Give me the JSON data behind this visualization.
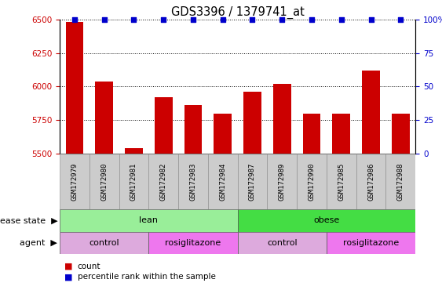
{
  "title": "GDS3396 / 1379741_at",
  "samples": [
    "GSM172979",
    "GSM172980",
    "GSM172981",
    "GSM172982",
    "GSM172983",
    "GSM172984",
    "GSM172987",
    "GSM172989",
    "GSM172990",
    "GSM172985",
    "GSM172986",
    "GSM172988"
  ],
  "counts": [
    6480,
    6040,
    5540,
    5920,
    5860,
    5800,
    5960,
    6020,
    5800,
    5800,
    6120,
    5800
  ],
  "percentiles": [
    100,
    100,
    100,
    100,
    100,
    100,
    100,
    100,
    100,
    100,
    100,
    100
  ],
  "ylim_left": [
    5500,
    6500
  ],
  "ylim_right": [
    0,
    100
  ],
  "yticks_left": [
    5500,
    5750,
    6000,
    6250,
    6500
  ],
  "yticks_right": [
    0,
    25,
    50,
    75,
    100
  ],
  "ytick_right_labels": [
    "0",
    "25",
    "50",
    "75",
    "100%"
  ],
  "bar_color": "#cc0000",
  "dot_color": "#0000cc",
  "disease_state": [
    {
      "label": "lean",
      "start": 0,
      "end": 6,
      "color": "#99ee99"
    },
    {
      "label": "obese",
      "start": 6,
      "end": 12,
      "color": "#44dd44"
    }
  ],
  "agent": [
    {
      "label": "control",
      "start": 0,
      "end": 3,
      "color": "#ddaadd"
    },
    {
      "label": "rosiglitazone",
      "start": 3,
      "end": 6,
      "color": "#ee77ee"
    },
    {
      "label": "control",
      "start": 6,
      "end": 9,
      "color": "#ddaadd"
    },
    {
      "label": "rosiglitazone",
      "start": 9,
      "end": 12,
      "color": "#ee77ee"
    }
  ],
  "legend_count_label": "count",
  "legend_pct_label": "percentile rank within the sample",
  "legend_count_color": "#cc0000",
  "legend_pct_color": "#0000cc",
  "ticklabel_bg": "#cccccc",
  "label_fontsize": 8,
  "tick_fontsize": 7.5,
  "bar_width": 0.6
}
